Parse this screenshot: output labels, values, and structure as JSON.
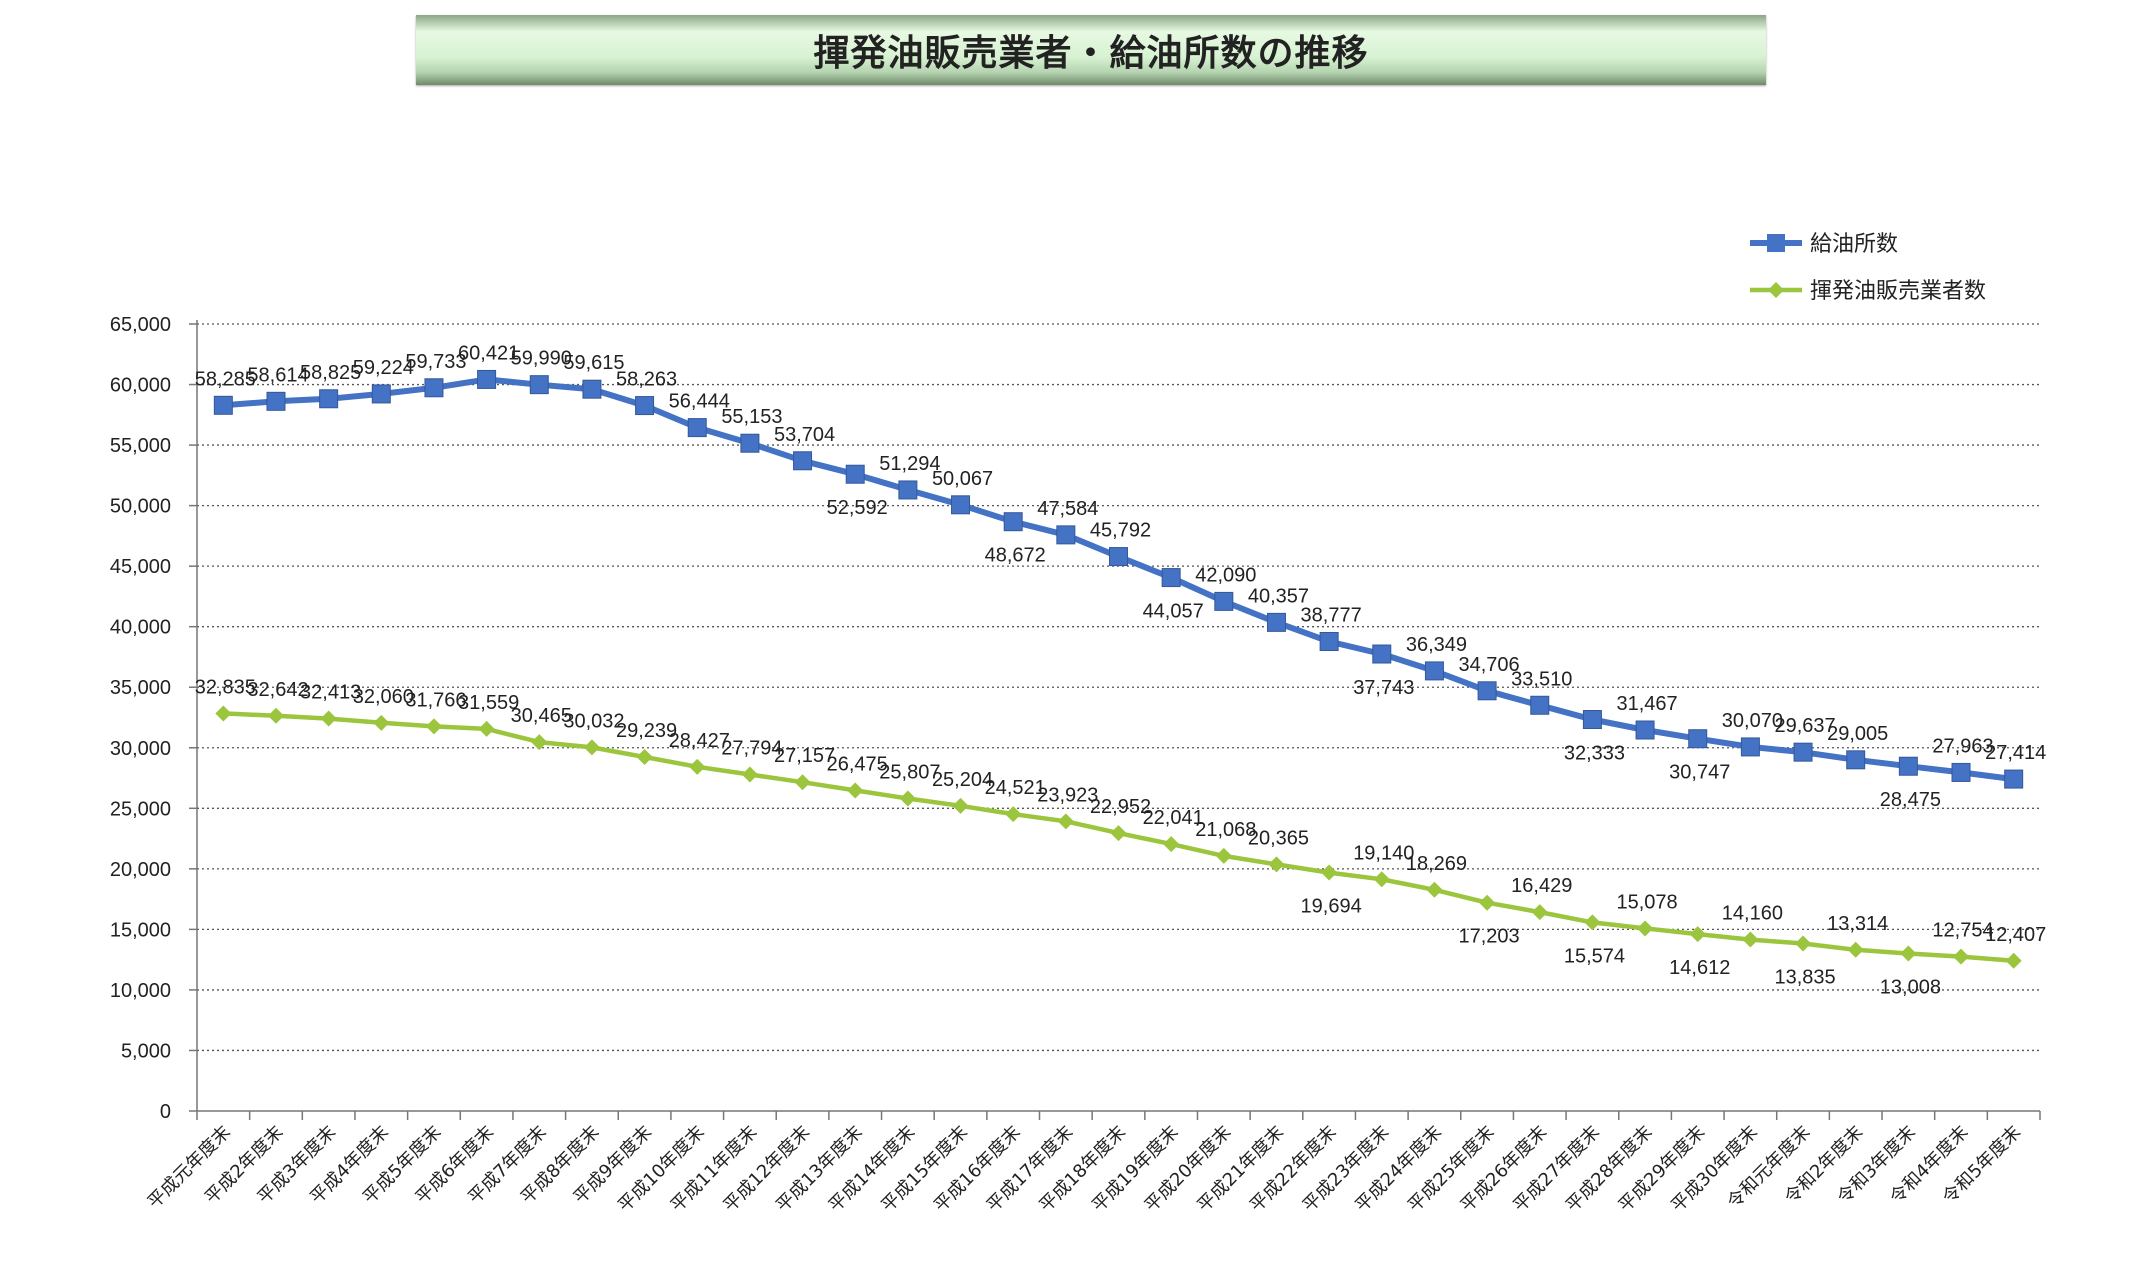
{
  "title": "揮発油販売業者・給油所数の推移",
  "chart_data": {
    "type": "line",
    "title": "揮発油販売業者・給油所数の推移",
    "xlabel": "",
    "ylabel": "",
    "ylim": [
      0,
      65000
    ],
    "ytick_step": 5000,
    "grid": "horizontal dotted",
    "legend_position": "top-right",
    "categories": [
      "平成元年度末",
      "平成2年度末",
      "平成3年度末",
      "平成4年度末",
      "平成5年度末",
      "平成6年度末",
      "平成7年度末",
      "平成8年度末",
      "平成9年度末",
      "平成10年度末",
      "平成11年度末",
      "平成12年度末",
      "平成13年度末",
      "平成14年度末",
      "平成15年度末",
      "平成16年度末",
      "平成17年度末",
      "平成18年度末",
      "平成19年度末",
      "平成20年度末",
      "平成21年度末",
      "平成22年度末",
      "平成23年度末",
      "平成24年度末",
      "平成25年度末",
      "平成26年度末",
      "平成27年度末",
      "平成28年度末",
      "平成29年度末",
      "平成30年度末",
      "令和元年度末",
      "令和2年度末",
      "令和3年度末",
      "令和4年度末",
      "令和5年度末"
    ],
    "series": [
      {
        "name": "給油所数",
        "color": "#4472c4",
        "marker": "square",
        "values": [
          58285,
          58614,
          58825,
          59224,
          59733,
          60421,
          59990,
          59615,
          58263,
          56444,
          55153,
          53704,
          52592,
          51294,
          50067,
          48672,
          47584,
          45792,
          44057,
          42090,
          40357,
          38777,
          37743,
          36349,
          34706,
          33510,
          32333,
          31467,
          30747,
          30070,
          29637,
          29005,
          28475,
          27963,
          27414
        ],
        "labels": [
          "58,285",
          "58,614",
          "58,825",
          "59,224",
          "59,733",
          "60,421",
          "59,990",
          "59,615",
          "58,263",
          "56,444",
          "55,153",
          "53,704",
          "52,592",
          "51,294",
          "50,067",
          "48,672",
          "47,584",
          "45,792",
          "44,057",
          "42,090",
          "40,357",
          "38,777",
          "37,743",
          "36,349",
          "34,706",
          "33,510",
          "32,333",
          "31,467",
          "30,747",
          "30,070",
          "29,637",
          "29,005",
          "28,475",
          "27,963",
          "27,414"
        ]
      },
      {
        "name": "揮発油販売業者数",
        "color": "#9bc53d",
        "marker": "diamond",
        "values": [
          32835,
          32642,
          32413,
          32060,
          31766,
          31559,
          30465,
          30032,
          29239,
          28427,
          27794,
          27157,
          26475,
          25807,
          25204,
          24521,
          23923,
          22952,
          22041,
          21068,
          20365,
          19694,
          19140,
          18269,
          17203,
          16429,
          15574,
          15078,
          14612,
          14160,
          13835,
          13314,
          13008,
          12754,
          12407
        ],
        "labels": [
          "32,835",
          "32,642",
          "32,413",
          "32,060",
          "31,766",
          "31,559",
          "30,465",
          "30,032",
          "29,239",
          "28,427",
          "27,794",
          "27,157",
          "26,475",
          "25,807",
          "25,204",
          "24,521",
          "23,923",
          "22,952",
          "22,041",
          "21,068",
          "20,365",
          "19,694",
          "19,140",
          "18,269",
          "17,203",
          "16,429",
          "15,574",
          "15,078",
          "14,612",
          "14,160",
          "13,835",
          "13,314",
          "13,008",
          "12,754",
          "12,407"
        ]
      }
    ]
  }
}
